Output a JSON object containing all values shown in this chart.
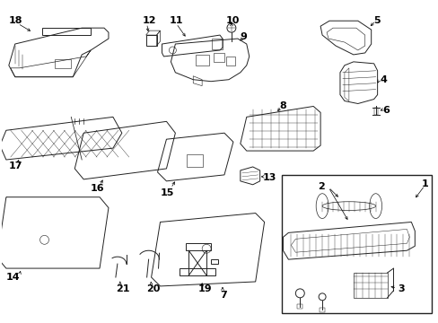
{
  "bg_color": "#ffffff",
  "line_color": "#222222",
  "lw": 0.7,
  "fig_w": 4.89,
  "fig_h": 3.6,
  "dpi": 100
}
